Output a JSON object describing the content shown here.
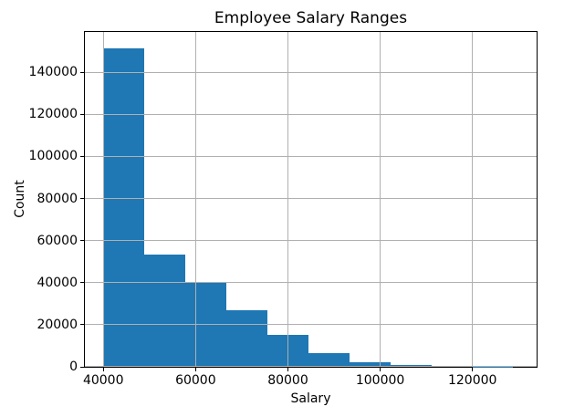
{
  "figure": {
    "background": "#ffffff"
  },
  "chart_data": {
    "type": "bar",
    "subtype": "histogram",
    "title": "Employee Salary Ranges",
    "xlabel": "Salary",
    "ylabel": "Count",
    "bar_color": "#1f77b4",
    "grid_color": "#b0b0b0",
    "axis_color": "#000000",
    "grid": true,
    "legend": null,
    "bin_start": 40000,
    "bin_width": 8885,
    "bin_edges": [
      40000,
      48885,
      57770,
      66655,
      75540,
      84425,
      93310,
      102195,
      111080,
      119965,
      128850
    ],
    "counts": [
      151500,
      53500,
      40500,
      27000,
      15000,
      6500,
      2100,
      1000,
      450,
      100
    ],
    "xticks": [
      40000,
      60000,
      80000,
      100000,
      120000
    ],
    "yticks": [
      0,
      20000,
      40000,
      60000,
      80000,
      100000,
      120000,
      140000
    ],
    "xlim": [
      36000,
      133900
    ],
    "ylim": [
      0,
      159200
    ]
  }
}
